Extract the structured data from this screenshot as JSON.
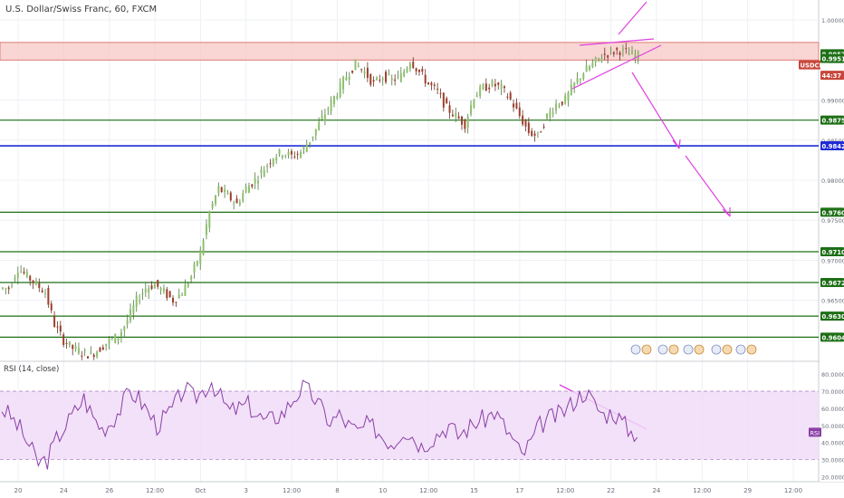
{
  "header": {
    "title": "U.S. Dollar/Swiss Franc, 60, FXCM",
    "rsi_title": "RSI (14, close)"
  },
  "chart_data": {
    "type": "candlestick",
    "symbol": "USDCHF",
    "timeframe": "60",
    "price_axis": {
      "ticks": [
        "1.00000",
        "0.99500",
        "0.99000",
        "0.98500",
        "0.98000",
        "0.97500",
        "0.97000",
        "0.96500"
      ],
      "ylim": [
        0.9575,
        1.0025
      ]
    },
    "price_badges": [
      {
        "label": "0.99579",
        "value": 0.99579,
        "color": "#1e6f16"
      },
      {
        "label": "0.99519",
        "value": 0.99519,
        "color": "#1e6f16"
      },
      {
        "label": "USDCHF",
        "value": 0.9944,
        "color": "#c8463b"
      },
      {
        "label": "44:37",
        "value": 0.9931,
        "color": "#c8463b"
      }
    ],
    "levels": [
      {
        "label": "0.98750",
        "value": 0.9875,
        "color": "#1e6f16"
      },
      {
        "label": "0.98429",
        "value": 0.98429,
        "color": "#1f2bd6"
      },
      {
        "label": "0.97600",
        "value": 0.976,
        "color": "#1e6f16"
      },
      {
        "label": "0.97107",
        "value": 0.97107,
        "color": "#1e6f16"
      },
      {
        "label": "0.96722",
        "value": 0.96722,
        "color": "#1e6f16"
      },
      {
        "label": "0.96303",
        "value": 0.96303,
        "color": "#1e6f16"
      },
      {
        "label": "0.96040",
        "value": 0.9604,
        "color": "#1e6f16"
      }
    ],
    "resistance_zone": {
      "from": 0.995,
      "to": 0.9972
    },
    "time_axis": {
      "labels": [
        "20",
        "24",
        "26",
        "12:00",
        "Oct",
        "3",
        "12:00",
        "8",
        "10",
        "12:00",
        "15",
        "17",
        "12:00",
        "22",
        "24",
        "12:00",
        "29",
        "12:00"
      ]
    },
    "closes": [
      0.9665,
      0.969,
      0.968,
      0.967,
      0.966,
      0.962,
      0.96,
      0.959,
      0.9585,
      0.9582,
      0.959,
      0.96,
      0.9605,
      0.9625,
      0.965,
      0.9665,
      0.967,
      0.966,
      0.965,
      0.966,
      0.968,
      0.971,
      0.976,
      0.979,
      0.978,
      0.977,
      0.979,
      0.98,
      0.9815,
      0.983,
      0.9835,
      0.983,
      0.9835,
      0.985,
      0.987,
      0.989,
      0.991,
      0.993,
      0.9945,
      0.9935,
      0.992,
      0.993,
      0.9925,
      0.993,
      0.995,
      0.9935,
      0.992,
      0.991,
      0.989,
      0.988,
      0.987,
      0.9905,
      0.9915,
      0.992,
      0.9915,
      0.99,
      0.988,
      0.986,
      0.9855,
      0.988,
      0.9895,
      0.99,
      0.992,
      0.9935,
      0.9945,
      0.9955,
      0.996,
      0.9962,
      0.9958,
      0.9955
    ],
    "rsi": {
      "ticks": [
        "80.0000",
        "70.0000",
        "60.0000",
        "50.0000",
        "40.0000",
        "30.0000",
        "20.0000"
      ],
      "ylim": [
        17,
        87
      ],
      "band": [
        30,
        70
      ],
      "current_label": "RSI",
      "values": [
        60,
        55,
        48,
        38,
        28,
        30,
        42,
        50,
        58,
        66,
        55,
        48,
        52,
        60,
        70,
        66,
        58,
        50,
        55,
        62,
        72,
        66,
        70,
        76,
        66,
        58,
        60,
        62,
        56,
        52,
        55,
        58,
        66,
        72,
        68,
        60,
        52,
        56,
        50,
        46,
        50,
        48,
        42,
        40,
        48,
        44,
        38,
        42,
        46,
        50,
        44,
        48,
        52,
        54,
        58,
        50,
        42,
        32,
        40,
        50,
        54,
        56,
        60,
        66,
        70,
        62,
        56,
        58,
        52,
        46
      ]
    }
  }
}
